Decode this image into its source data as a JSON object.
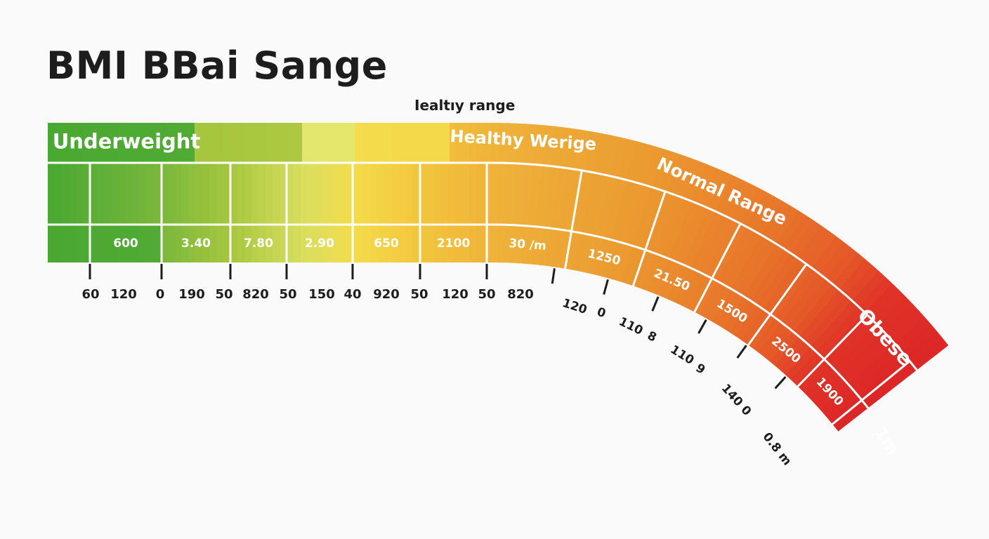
{
  "title": "BMI BBai Sange",
  "subtitle": "Iealtıy range",
  "colors": {
    "dark_green": "#4aa832",
    "green": "#7ab83c",
    "yellow_green": "#a7c73e",
    "pale_yellow": "#d8de5e",
    "yellow": "#f4dc4c",
    "amber": "#f2c53c",
    "orange_yellow": "#efb33a",
    "orange": "#eb9a30",
    "dark_orange": "#e8772a",
    "orange_red": "#e55a28",
    "red": "#e03328",
    "deep_red": "#dd2626"
  },
  "chart_data": {
    "type": "table",
    "description_kind": "curved banded gauge",
    "bands": [
      {
        "label": "Underweight",
        "color": "#4aa832"
      },
      {
        "label": "Healthy Werige",
        "color": "#f4dc4c"
      },
      {
        "label": "Normal Range",
        "color": "#eb9a30"
      },
      {
        "label": "Obese",
        "color": "#e03328"
      },
      {
        "label": "1m",
        "color": "#dd2626"
      }
    ],
    "value_labels": [
      "",
      "600",
      "3.40",
      "7.80",
      "2.90",
      "650",
      "2100",
      "30 /m",
      "1250",
      "21.50",
      "1500",
      "2500",
      "1900"
    ],
    "scale_labels": [
      "60",
      "120",
      "0",
      "190",
      "50",
      "820",
      "50",
      "150",
      "40",
      "920",
      "50",
      "120",
      "50",
      "820"
    ],
    "curve_scale_labels": [
      "120",
      "0",
      "110",
      "8",
      "110",
      "9",
      "140 0",
      "0.8 m"
    ]
  }
}
